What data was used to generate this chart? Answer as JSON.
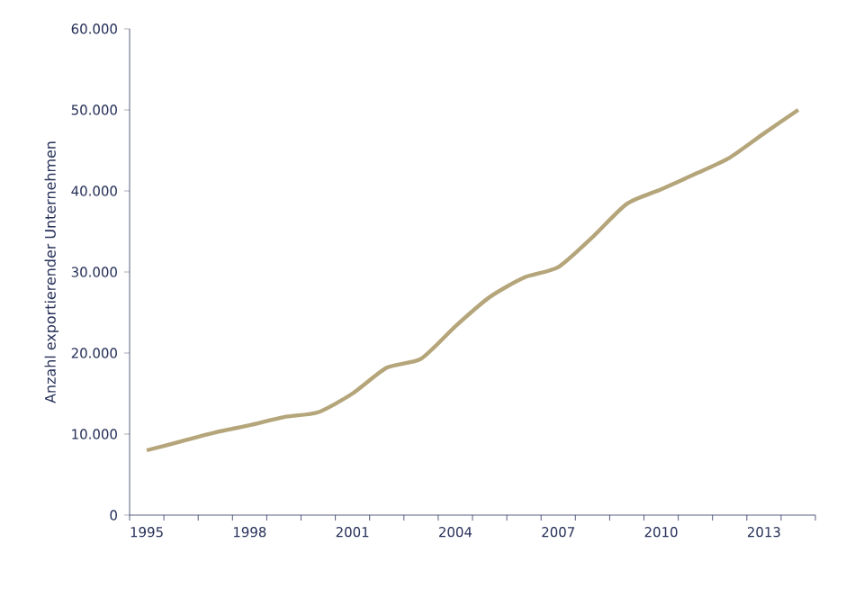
{
  "chart_data": {
    "type": "line",
    "ylabel": "Anzahl exportierender Unternehmen",
    "categories": [
      "1995",
      null,
      null,
      "1998",
      null,
      null,
      "2001",
      null,
      null,
      "2004",
      null,
      null,
      "2007",
      null,
      null,
      "2010",
      null,
      null,
      "2013",
      null
    ],
    "values": [
      8000,
      9100,
      10200,
      11100,
      12100,
      12700,
      15000,
      18200,
      19300,
      23300,
      26900,
      29300,
      30600,
      34300,
      38400,
      40200,
      42100,
      44100,
      47100,
      50000
    ],
    "color": "#b5a57a",
    "ylim": [
      0,
      60000
    ],
    "yticks": [
      {
        "value": 0,
        "label": "0"
      },
      {
        "value": 10000,
        "label": "10.000"
      },
      {
        "value": 20000,
        "label": "20.000"
      },
      {
        "value": 30000,
        "label": "30.000"
      },
      {
        "value": 40000,
        "label": "40.000"
      },
      {
        "value": 50000,
        "label": "50.000"
      },
      {
        "value": 60000,
        "label": "60.000"
      }
    ],
    "marker": "none",
    "line_style": "solid"
  }
}
